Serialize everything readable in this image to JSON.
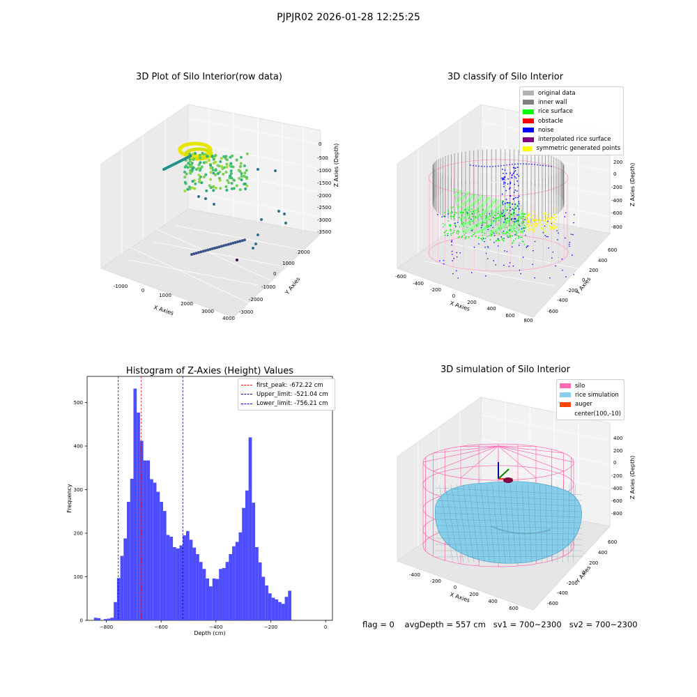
{
  "figure_title": "PJPJR02 2026-01-28 12:25:25",
  "panels": {
    "raw": {
      "title": "3D Plot of Silo Interior(row data)",
      "xlabel": "X Axies",
      "ylabel": "Y Axies",
      "zlabel": "Z Axies (Depth)",
      "xticks": [
        "-1000",
        "0",
        "1000",
        "2000",
        "3000",
        "4000"
      ],
      "yticks": [
        "2000",
        "1000",
        "0",
        "-1000",
        "-2000",
        "-3000"
      ],
      "zticks": [
        "0",
        "-500",
        "-1000",
        "-1500",
        "-2000",
        "-2500",
        "-3000",
        "-3500"
      ]
    },
    "classify": {
      "title": "3D classify of Silo Interior",
      "xlabel": "X Axies",
      "ylabel": "Y Axies",
      "zlabel": "Z Axies (Depth)",
      "xticks": [
        "-600",
        "-400",
        "-200",
        "0",
        "200",
        "400",
        "600",
        "800"
      ],
      "yticks": [
        "600",
        "400",
        "200",
        "0",
        "-200",
        "-400",
        "-600"
      ],
      "zticks": [
        "200",
        "0",
        "-200",
        "-400",
        "-600",
        "-800"
      ],
      "legend": [
        {
          "label": "original data",
          "color": "#b3b3b3"
        },
        {
          "label": "inner wall",
          "color": "#808080"
        },
        {
          "label": "rice surface",
          "color": "#00ff00"
        },
        {
          "label": "obstacle",
          "color": "#ff0000"
        },
        {
          "label": "noise",
          "color": "#0000ff"
        },
        {
          "label": "interpolated rice surface",
          "color": "#800080"
        },
        {
          "label": "symmetric generated points",
          "color": "#ffff00"
        }
      ]
    },
    "simulation": {
      "title": "3D simulation of Silo Interior",
      "xlabel": "X Axies",
      "ylabel": "Y Axies",
      "zlabel": "Z Axies (Depth)",
      "xticks": [
        "-400",
        "-200",
        "0",
        "200",
        "400",
        "600"
      ],
      "yticks": [
        "600",
        "400",
        "200",
        "0",
        "-200",
        "-400",
        "-600"
      ],
      "zticks": [
        "400",
        "200",
        "0",
        "-200",
        "-400",
        "-600",
        "-800"
      ],
      "legend": [
        {
          "label": "silo",
          "color": "#ff69b4"
        },
        {
          "label": "rice simulation",
          "color": "#87ceeb"
        },
        {
          "label": "auger",
          "color": "#ff4500"
        },
        {
          "label": "center(100,-10)",
          "color": ""
        }
      ]
    }
  },
  "footer": {
    "flag": "flag = 0",
    "avg_depth": "avgDepth = 557 cm",
    "sv1": "sv1 = 700~2300",
    "sv2": "sv2 = 700~2300"
  },
  "chart_data": {
    "type": "bar",
    "title": "Histogram of Z-Axies (Height) Values",
    "xlabel": "Depth (cm)",
    "ylabel": "Frequency",
    "xlim": [
      -870,
      25
    ],
    "ylim": [
      0,
      560
    ],
    "xticks": [
      -800,
      -600,
      -400,
      -200,
      0
    ],
    "yticks": [
      0,
      100,
      200,
      300,
      400,
      500
    ],
    "bin_width": 12,
    "bin_starts": [
      -845,
      -833,
      -821,
      -809,
      -797,
      -785,
      -773,
      -761,
      -749,
      -737,
      -725,
      -713,
      -701,
      -689,
      -677,
      -665,
      -653,
      -641,
      -629,
      -617,
      -605,
      -593,
      -581,
      -569,
      -557,
      -545,
      -533,
      -521,
      -509,
      -497,
      -485,
      -473,
      -461,
      -449,
      -437,
      -425,
      -413,
      -401,
      -389,
      -377,
      -365,
      -353,
      -341,
      -329,
      -317,
      -305,
      -293,
      -281,
      -269,
      -257,
      -245,
      -233,
      -221,
      -209,
      -197,
      -185,
      -173,
      -161,
      -149,
      -137,
      -125,
      -113,
      -101,
      -89,
      -77,
      -65,
      -53,
      -41,
      -29,
      -17,
      -5
    ],
    "values": [
      6,
      5,
      0,
      3,
      4,
      6,
      42,
      97,
      148,
      188,
      272,
      325,
      532,
      477,
      412,
      367,
      367,
      324,
      316,
      295,
      272,
      251,
      196,
      192,
      168,
      165,
      172,
      195,
      205,
      185,
      167,
      152,
      134,
      118,
      96,
      78,
      96,
      95,
      118,
      120,
      134,
      152,
      170,
      180,
      202,
      258,
      298,
      420,
      270,
      168,
      133,
      100,
      80,
      62,
      52,
      48,
      42,
      38,
      54,
      68,
      0,
      0,
      0,
      0,
      0,
      0,
      0,
      0,
      0,
      0,
      0
    ],
    "vlines": [
      {
        "label": "first_peak: -672.22 cm",
        "x": -672.22,
        "color": "#ff0000"
      },
      {
        "label": "Upper_limit: -521.04 cm",
        "x": -521.04,
        "color": "#00008b"
      },
      {
        "label": "Lower_limit: -756.21 cm",
        "x": -756.21,
        "color": "#0000ff"
      }
    ],
    "bar_color": "#4d4dff",
    "legend_position": "top-right",
    "grid": false
  }
}
